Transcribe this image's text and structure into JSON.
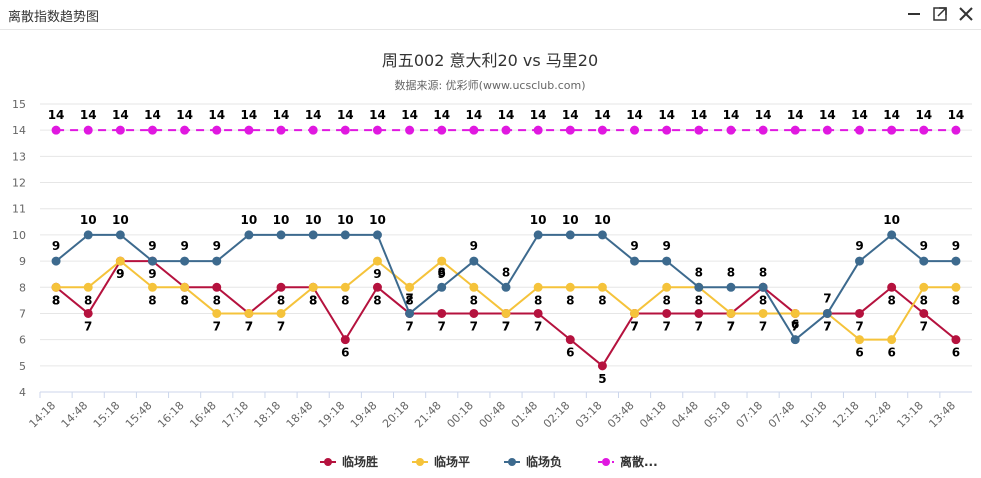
{
  "window": {
    "title": "离散指数趋势图",
    "icons": [
      "minimize-icon",
      "maximize-icon",
      "close-icon"
    ]
  },
  "chart_data": {
    "type": "line",
    "title": "周五002 意大利20 vs 马里20",
    "subtitle": "数据来源: 优彩师(www.ucsclub.com)",
    "xlabel": "",
    "ylabel": "",
    "ylim": [
      4,
      15
    ],
    "yticks": [
      4,
      5,
      6,
      7,
      8,
      9,
      10,
      11,
      12,
      13,
      14,
      15
    ],
    "grid": true,
    "legend_position": "bottom",
    "categories": [
      "14:18",
      "14:48",
      "15:18",
      "15:48",
      "16:18",
      "16:48",
      "17:18",
      "18:18",
      "18:48",
      "19:18",
      "19:48",
      "20:18",
      "21:48",
      "00:18",
      "00:48",
      "01:48",
      "02:18",
      "03:18",
      "03:48",
      "04:18",
      "04:48",
      "05:18",
      "07:18",
      "07:48",
      "10:18",
      "12:18",
      "12:48",
      "13:18",
      "13:48"
    ],
    "series": [
      {
        "name": "临场胜",
        "color": "#b5123e",
        "dashed": false,
        "label_pos": "below",
        "values": [
          8,
          7,
          9,
          9,
          8,
          8,
          7,
          8,
          8,
          6,
          8,
          7,
          7,
          7,
          7,
          7,
          6,
          5,
          7,
          7,
          7,
          7,
          8,
          7,
          7,
          7,
          8,
          7,
          6
        ]
      },
      {
        "name": "临场平",
        "color": "#f5c33b",
        "dashed": false,
        "label_pos": "below",
        "values": [
          8,
          8,
          9,
          8,
          8,
          7,
          7,
          7,
          8,
          8,
          9,
          8,
          9,
          8,
          7,
          8,
          8,
          8,
          7,
          8,
          8,
          7,
          7,
          7,
          7,
          6,
          6,
          8,
          8
        ]
      },
      {
        "name": "临场负",
        "color": "#3d6a8e",
        "dashed": false,
        "label_pos": "above",
        "values": [
          9,
          10,
          10,
          9,
          9,
          9,
          10,
          10,
          10,
          10,
          10,
          7,
          8,
          9,
          8,
          10,
          10,
          10,
          9,
          9,
          8,
          8,
          8,
          6,
          7,
          9,
          10,
          9,
          9
        ]
      },
      {
        "name": "离散...",
        "color": "#e018e0",
        "dashed": true,
        "label_pos": "above",
        "values": [
          14,
          14,
          14,
          14,
          14,
          14,
          14,
          14,
          14,
          14,
          14,
          14,
          14,
          14,
          14,
          14,
          14,
          14,
          14,
          14,
          14,
          14,
          14,
          14,
          14,
          14,
          14,
          14,
          14
        ]
      }
    ]
  }
}
